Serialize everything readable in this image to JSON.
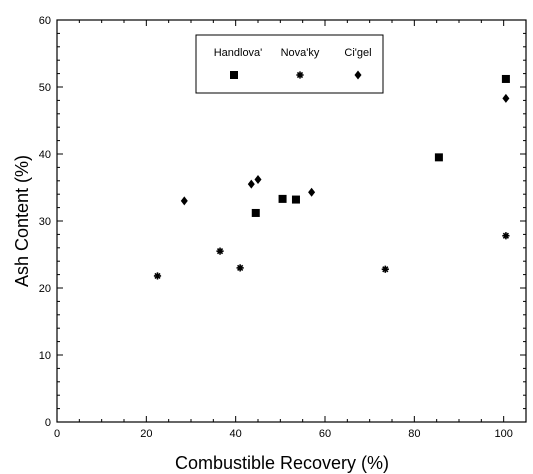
{
  "chart_data": {
    "type": "scatter",
    "title": "",
    "xlabel": "Combustible Recovery (%)",
    "ylabel": "Ash Content (%)",
    "xlim": [
      0,
      105
    ],
    "ylim": [
      0,
      60
    ],
    "xticks": [
      "0",
      "20",
      "40",
      "60",
      "80",
      "100"
    ],
    "yticks": [
      "0",
      "10",
      "20",
      "30",
      "40",
      "50",
      "60"
    ],
    "grid": false,
    "legend_position": "top-center",
    "series": [
      {
        "name": "Handlova'",
        "marker": "square",
        "color": "#000000",
        "points": [
          [
            44.5,
            31.2
          ],
          [
            50.5,
            33.3
          ],
          [
            53.5,
            33.2
          ],
          [
            85.5,
            39.5
          ],
          [
            100.5,
            51.2
          ]
        ]
      },
      {
        "name": "Nova'ky",
        "marker": "asterisk",
        "color": "#000000",
        "points": [
          [
            22.5,
            21.8
          ],
          [
            36.5,
            25.5
          ],
          [
            41,
            23
          ],
          [
            73.5,
            22.8
          ],
          [
            100.5,
            27.8
          ]
        ]
      },
      {
        "name": "Ci'gel",
        "marker": "diamond",
        "color": "#000000",
        "points": [
          [
            28.5,
            33
          ],
          [
            43.5,
            35.5
          ],
          [
            45,
            36.2
          ],
          [
            57,
            34.3
          ],
          [
            100.5,
            48.3
          ]
        ]
      }
    ]
  }
}
